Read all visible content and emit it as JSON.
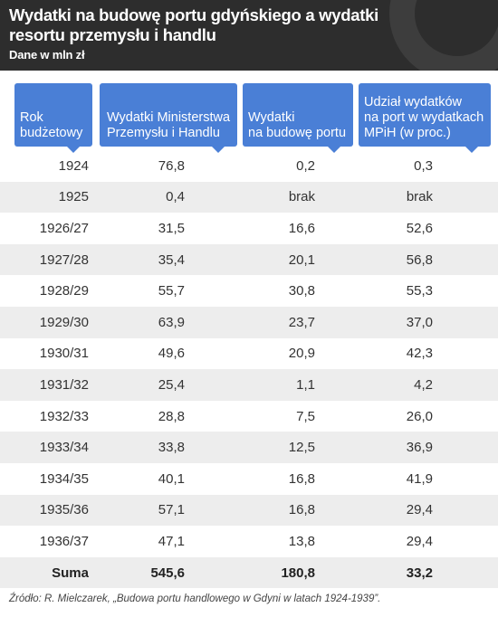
{
  "header": {
    "title": "Wydatki na budowę portu gdyńskiego a wydatki resortu przemysłu i handlu",
    "subtitle": "Dane w mln zł"
  },
  "columns": [
    "Rok\nbudżetowy",
    "Wydatki Ministerstwa\nPrzemysłu i Handlu",
    "Wydatki\nna budowę portu",
    "Udział wydatków\nna port w wydatkach\nMPiH (w proc.)"
  ],
  "rows": [
    [
      "1924",
      "76,8",
      "0,2",
      "0,3"
    ],
    [
      "1925",
      "0,4",
      "brak",
      "brak"
    ],
    [
      "1926/27",
      "31,5",
      "16,6",
      "52,6"
    ],
    [
      "1927/28",
      "35,4",
      "20,1",
      "56,8"
    ],
    [
      "1928/29",
      "55,7",
      "30,8",
      "55,3"
    ],
    [
      "1929/30",
      "63,9",
      "23,7",
      "37,0"
    ],
    [
      "1930/31",
      "49,6",
      "20,9",
      "42,3"
    ],
    [
      "1931/32",
      "25,4",
      "1,1",
      "4,2"
    ],
    [
      "1932/33",
      "28,8",
      "7,5",
      "26,0"
    ],
    [
      "1933/34",
      "33,8",
      "12,5",
      "36,9"
    ],
    [
      "1934/35",
      "40,1",
      "16,8",
      "41,9"
    ],
    [
      "1935/36",
      "57,1",
      "16,8",
      "29,4"
    ],
    [
      "1936/37",
      "47,1",
      "13,8",
      "29,4"
    ],
    [
      "Suma",
      "545,6",
      "180,8",
      "33,2"
    ]
  ],
  "source": "Źródło: R. Mielczarek, „Budowa portu handlowego w Gdyni w latach 1924-1939”.",
  "colors": {
    "header_bg": "#2d2d2d",
    "column_header_bg": "#4a7fd6",
    "stripe": "#ededed"
  }
}
